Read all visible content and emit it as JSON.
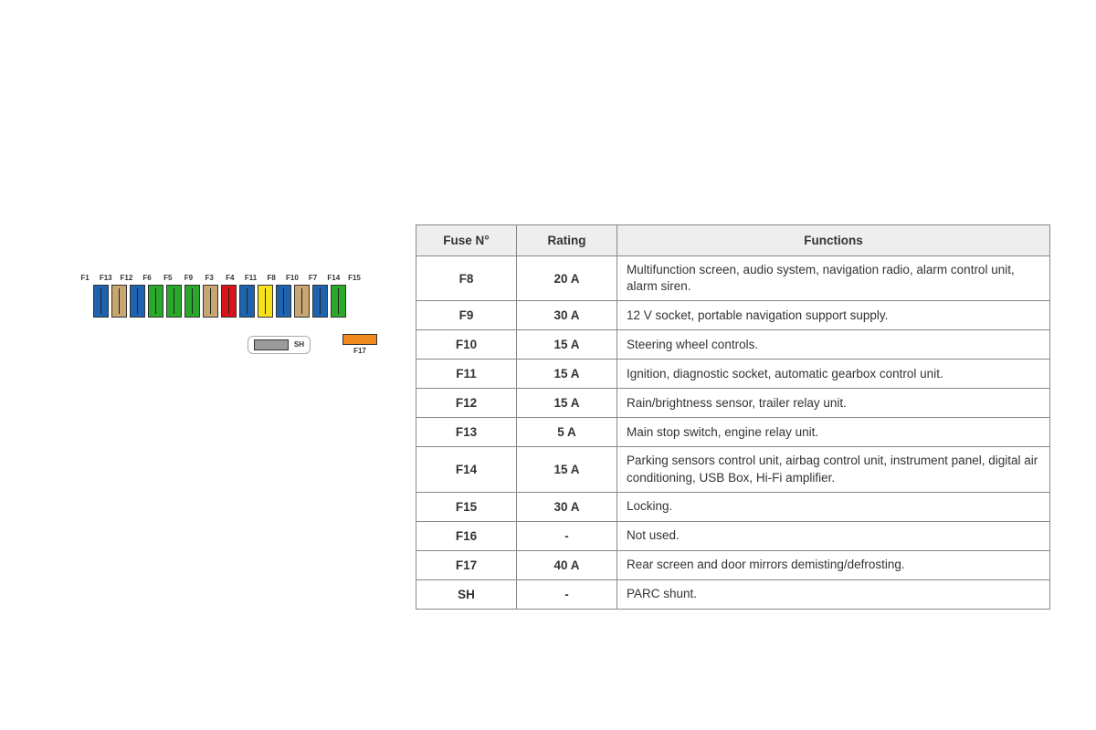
{
  "diagram": {
    "fuses": [
      {
        "label": "F1",
        "color": "#1e63af"
      },
      {
        "label": "F13",
        "color": "#c7a671"
      },
      {
        "label": "F12",
        "color": "#1e63af"
      },
      {
        "label": "F6",
        "color": "#2aa82a"
      },
      {
        "label": "F5",
        "color": "#2aa82a"
      },
      {
        "label": "F9",
        "color": "#2aa82a"
      },
      {
        "label": "F3",
        "color": "#c7a671"
      },
      {
        "label": "F4",
        "color": "#d8141a"
      },
      {
        "label": "F11",
        "color": "#1e63af"
      },
      {
        "label": "F8",
        "color": "#f6e21a"
      },
      {
        "label": "F10",
        "color": "#1e63af"
      },
      {
        "label": "F7",
        "color": "#c7a671"
      },
      {
        "label": "F14",
        "color": "#1e63af"
      },
      {
        "label": "F15",
        "color": "#2aa82a"
      }
    ],
    "sh_label": "SH",
    "sh_color": "#9b9b9b",
    "f17_label": "F17",
    "f17_color": "#f08a1e"
  },
  "table": {
    "headers": {
      "fuse": "Fuse N°",
      "rating": "Rating",
      "functions": "Functions"
    },
    "rows": [
      {
        "fuse": "F8",
        "rating": "20 A",
        "func": "Multifunction screen, audio system, navigation radio, alarm control unit, alarm siren."
      },
      {
        "fuse": "F9",
        "rating": "30 A",
        "func": "12 V socket, portable navigation support supply."
      },
      {
        "fuse": "F10",
        "rating": "15 A",
        "func": "Steering wheel controls."
      },
      {
        "fuse": "F11",
        "rating": "15 A",
        "func": "Ignition, diagnostic socket, automatic gearbox control unit."
      },
      {
        "fuse": "F12",
        "rating": "15 A",
        "func": "Rain/brightness sensor, trailer relay unit."
      },
      {
        "fuse": "F13",
        "rating": "5 A",
        "func": "Main stop switch, engine relay unit."
      },
      {
        "fuse": "F14",
        "rating": "15 A",
        "func": "Parking sensors control unit, airbag control unit, instrument panel, digital air conditioning, USB Box, Hi-Fi amplifier."
      },
      {
        "fuse": "F15",
        "rating": "30 A",
        "func": "Locking."
      },
      {
        "fuse": "F16",
        "rating": "-",
        "func": "Not used."
      },
      {
        "fuse": "F17",
        "rating": "40 A",
        "func": "Rear screen and door mirrors demisting/defrosting."
      },
      {
        "fuse": "SH",
        "rating": "-",
        "func": "PARC shunt."
      }
    ]
  }
}
